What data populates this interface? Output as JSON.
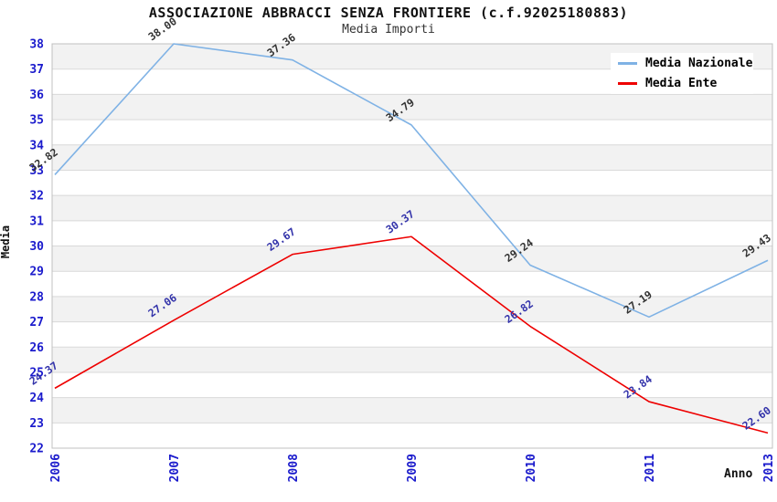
{
  "header": {
    "title": "ASSOCIAZIONE ABBRACCI SENZA FRONTIERE (c.f.92025180883)",
    "subtitle": "Media Importi"
  },
  "chart_data": {
    "type": "line",
    "title": "ASSOCIAZIONE ABBRACCI SENZA FRONTIERE (c.f.92025180883)",
    "subtitle": "Media Importi",
    "xlabel": "Anno",
    "ylabel": "Media",
    "categories": [
      "2006",
      "2007",
      "2008",
      "2009",
      "2010",
      "2011",
      "2013"
    ],
    "series": [
      {
        "name": "Media Nazionale",
        "values": [
          32.82,
          38.0,
          37.36,
          34.79,
          29.24,
          27.19,
          29.43
        ],
        "color": "#7fb2e5",
        "label_color": "#333333"
      },
      {
        "name": "Media Ente",
        "values": [
          24.37,
          27.06,
          29.67,
          30.37,
          26.82,
          23.84,
          22.6
        ],
        "color": "#ee0000",
        "label_color": "#3333aa"
      }
    ],
    "ylim": [
      22,
      38
    ],
    "y_tick_step": 1,
    "grid": true,
    "value_label_decimals": 2,
    "legend_position": "top-right",
    "colors": {
      "tick_label": "#1a1acc",
      "band": "#f2f2f2",
      "gridline": "#d9d9d9",
      "border": "#c0c0c0",
      "background": "#ffffff"
    }
  }
}
